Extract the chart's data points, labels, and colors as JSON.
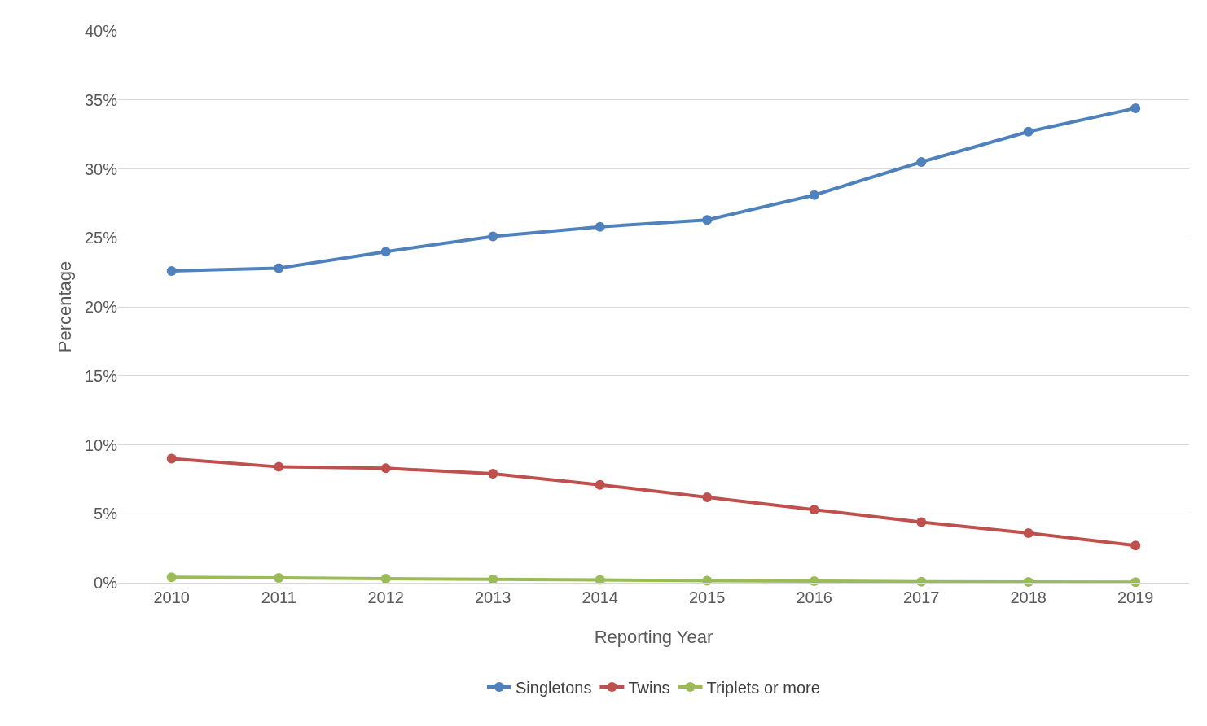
{
  "chart_data": {
    "type": "line",
    "xlabel": "Reporting Year",
    "ylabel": "Percentage",
    "categories": [
      "2010",
      "2011",
      "2012",
      "2013",
      "2014",
      "2015",
      "2016",
      "2017",
      "2018",
      "2019"
    ],
    "series": [
      {
        "name": "Singletons",
        "color": "#4f81bd",
        "values": [
          22.6,
          22.8,
          24.0,
          25.1,
          25.8,
          26.3,
          28.1,
          30.5,
          32.7,
          34.4
        ]
      },
      {
        "name": "Twins",
        "color": "#c0504d",
        "values": [
          9.0,
          8.4,
          8.3,
          7.9,
          7.1,
          6.2,
          5.3,
          4.4,
          3.6,
          2.7
        ]
      },
      {
        "name": "Triplets or more",
        "color": "#9bbb59",
        "values": [
          0.4,
          0.35,
          0.3,
          0.25,
          0.2,
          0.15,
          0.12,
          0.08,
          0.06,
          0.04
        ]
      }
    ],
    "ylim": [
      0,
      40
    ],
    "yticks": [
      {
        "value": 0,
        "label": "0%"
      },
      {
        "value": 5,
        "label": "5%"
      },
      {
        "value": 10,
        "label": "10%"
      },
      {
        "value": 15,
        "label": "15%"
      },
      {
        "value": 20,
        "label": "20%"
      },
      {
        "value": 25,
        "label": "25%"
      },
      {
        "value": 30,
        "label": "30%"
      },
      {
        "value": 35,
        "label": "35%"
      },
      {
        "value": 40,
        "label": "40%"
      }
    ],
    "grid": "y",
    "legend": "bottom",
    "marker": "circle",
    "line_style": "solid"
  }
}
